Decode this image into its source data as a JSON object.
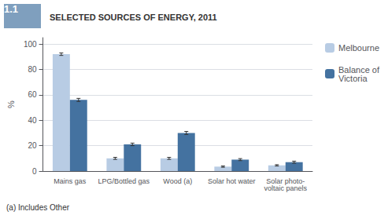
{
  "chart_data": {
    "type": "bar",
    "title": "SELECTED SOURCES OF ENERGY, 2011",
    "figure_label": {
      "text": "1.1",
      "color": "#7f9fbe"
    },
    "footnote": "(a) Includes Other",
    "ylabel": "%",
    "categories": [
      "Mains gas",
      "LPG/Bottled gas",
      "Wood (a)",
      "Solar hot water",
      "Solar photo-\nvoltaic panels"
    ],
    "series": [
      {
        "name": "Melbourne",
        "color": "#b8cce4",
        "values": [
          92,
          10,
          10,
          3.5,
          4.5
        ],
        "errors": [
          1.0,
          0.8,
          0.8,
          0.5,
          0.5
        ]
      },
      {
        "name": "Balance of\nVictoria",
        "color": "#4472a0",
        "values": [
          56,
          21,
          30,
          9,
          7
        ],
        "errors": [
          1.2,
          1.0,
          1.2,
          0.8,
          0.8
        ]
      }
    ],
    "ylim": [
      0,
      105
    ],
    "yticks": [
      0,
      20,
      40,
      60,
      80,
      100
    ],
    "grid": true,
    "legend": "right"
  }
}
